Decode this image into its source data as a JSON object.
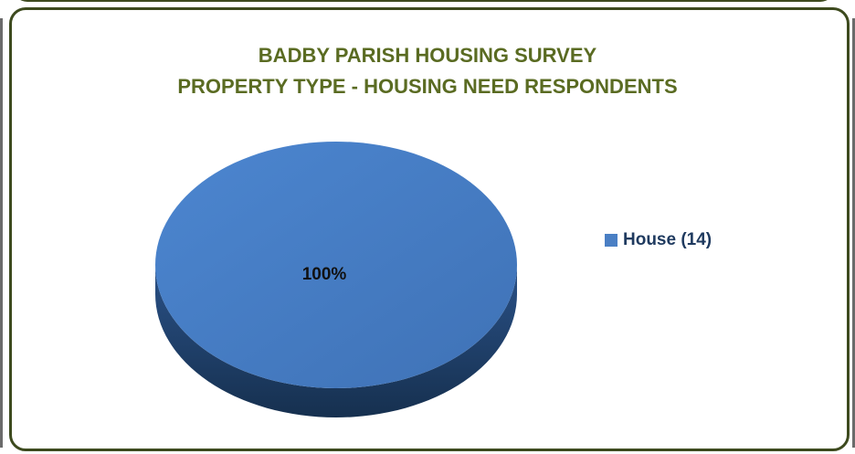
{
  "chart_data": {
    "type": "pie",
    "title": "BADBY PARISH HOUSING SURVEY",
    "subtitle": "PROPERTY TYPE - HOUSING NEED RESPONDENTS",
    "slices": [
      {
        "label": "House (14)",
        "value": 14,
        "percent_label": "100%"
      }
    ],
    "legend_position": "right",
    "colors": {
      "slice": "#4a7fc4",
      "slice_dark": "#1e3a64",
      "title": "#5a6b22",
      "frame": "#3d4a1e"
    }
  }
}
